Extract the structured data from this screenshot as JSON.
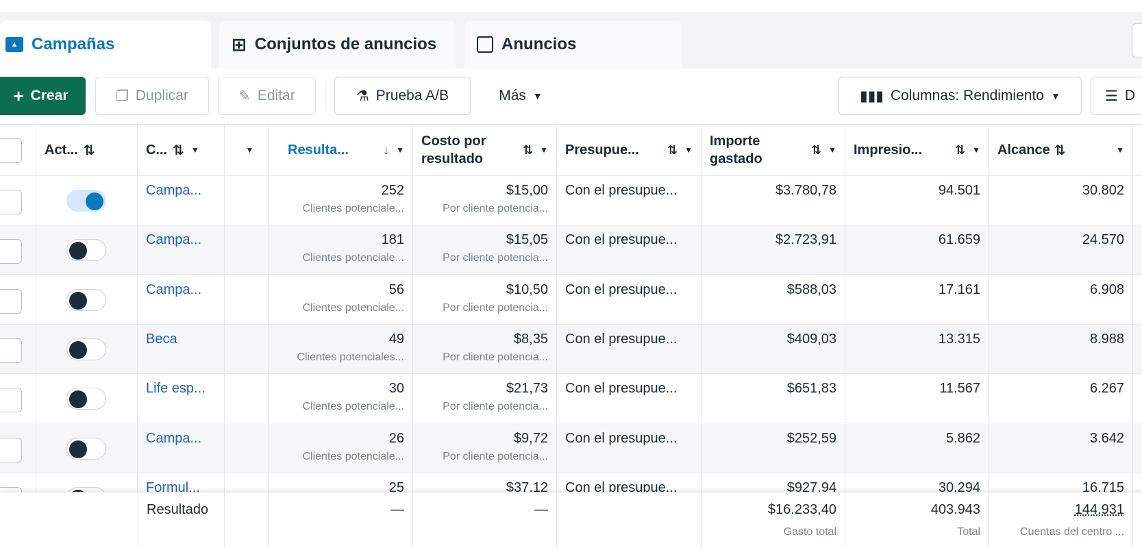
{
  "tabs": [
    {
      "label": "Campañas",
      "icon": "folder-icon"
    },
    {
      "label": "Conjuntos de anuncios",
      "icon": "grid-icon"
    },
    {
      "label": "Anuncios",
      "icon": "window-icon"
    }
  ],
  "toolbar": {
    "create": "Crear",
    "duplicate": "Duplicar",
    "edit": "Editar",
    "ab_test": "Prueba A/B",
    "more": "Más",
    "columns": "Columnas: Rendimiento",
    "breakdown": "D"
  },
  "headers": {
    "active": "Act...",
    "campaign": "C...",
    "results": "Resulta...",
    "cost": "Costo por resultado",
    "budget": "Presupue...",
    "spent": "Importe gastado",
    "impressions": "Impresio...",
    "reach": "Alcance"
  },
  "accent": "#0a78be",
  "rows": [
    {
      "on": true,
      "name": "Campa...",
      "results": "252",
      "results_sub": "Clientes potenciale...",
      "cost": "$15,00",
      "cost_sub": "Por cliente potencia...",
      "budget": "Con el presupue...",
      "spent": "$3.780,78",
      "impressions": "94.501",
      "reach": "30.802"
    },
    {
      "on": false,
      "name": "Campa...",
      "results": "181",
      "results_sub": "Clientes potenciale...",
      "cost": "$15,05",
      "cost_sub": "Por cliente potencia...",
      "budget": "Con el presupue...",
      "spent": "$2.723,91",
      "impressions": "61.659",
      "reach": "24.570"
    },
    {
      "on": false,
      "name": "Campa...",
      "results": "56",
      "results_sub": "Clientes potenciale...",
      "cost": "$10,50",
      "cost_sub": "Por cliente potencia...",
      "budget": "Con el presupue...",
      "spent": "$588,03",
      "impressions": "17.161",
      "reach": "6.908"
    },
    {
      "on": false,
      "name": "Beca",
      "results": "49",
      "results_sub": "Clientes potenciales...",
      "cost": "$8,35",
      "cost_sub": "Por cliente potencia...",
      "budget": "Con el presupue...",
      "spent": "$409,03",
      "impressions": "13.315",
      "reach": "8.988"
    },
    {
      "on": false,
      "name": "Life esp...",
      "results": "30",
      "results_sub": "Clientes potenciale...",
      "cost": "$21,73",
      "cost_sub": "Por cliente potencia...",
      "budget": "Con el presupue...",
      "spent": "$651,83",
      "impressions": "11.567",
      "reach": "6.267"
    },
    {
      "on": false,
      "name": "Campa...",
      "results": "26",
      "results_sub": "Clientes potenciale...",
      "cost": "$9,72",
      "cost_sub": "Por cliente potencia...",
      "budget": "Con el presupue...",
      "spent": "$252,59",
      "impressions": "5.862",
      "reach": "3.642"
    },
    {
      "on": false,
      "name": "Formul...",
      "results": "25",
      "results_sub": "",
      "cost": "$37,12",
      "cost_sub": "",
      "budget": "Con el presupue...",
      "spent": "$927,94",
      "impressions": "30.294",
      "reach": "16.715"
    }
  ],
  "footer": {
    "label": "Resultado",
    "results": "—",
    "cost": "—",
    "spent": "$16.233,40",
    "spent_sub": "Gasto total",
    "impressions": "403.943",
    "impressions_sub": "Total",
    "reach": "144.931",
    "reach_sub": "Cuentas del centro ..."
  }
}
